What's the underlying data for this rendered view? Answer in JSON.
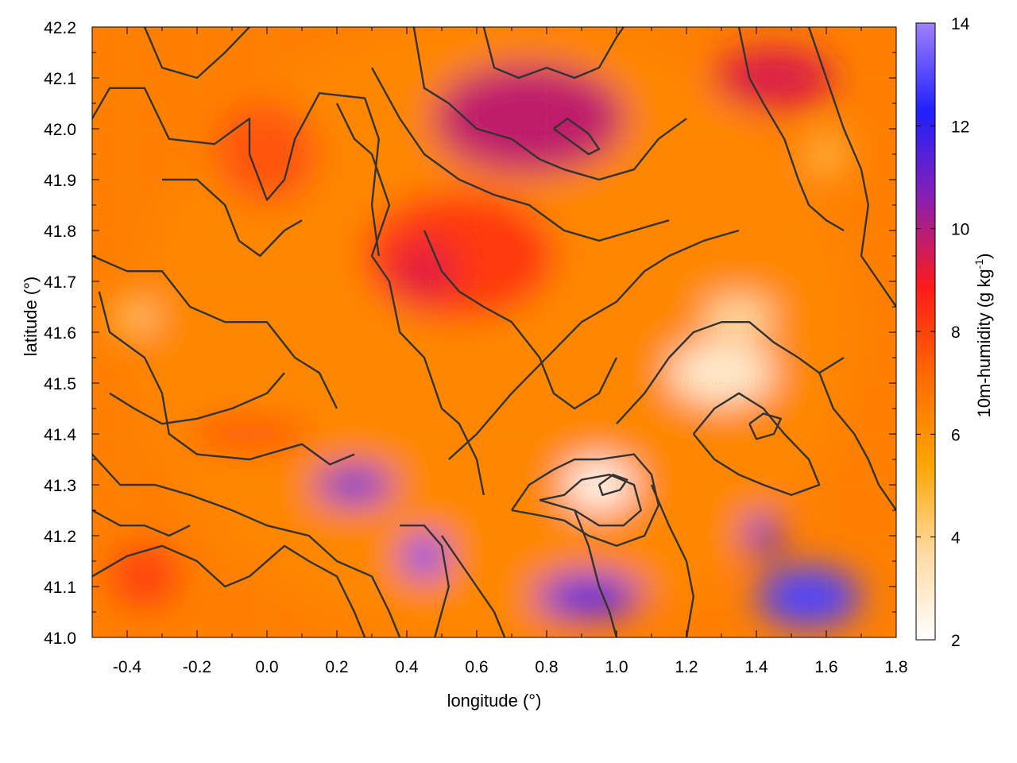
{
  "chart_data": {
    "type": "heatmap",
    "xlabel": "longitude (°)",
    "ylabel": "latitude (°)",
    "colorbar_label": "10m-humidity (g kg",
    "colorbar_label_sup": "-1",
    "colorbar_label_end": ")",
    "xlim": [
      -0.5,
      1.8
    ],
    "ylim": [
      41.0,
      42.2
    ],
    "clim": [
      2,
      14
    ],
    "x_ticks": [
      -0.4,
      -0.2,
      0.0,
      0.2,
      0.4,
      0.6,
      0.8,
      1.0,
      1.2,
      1.4,
      1.6,
      1.8
    ],
    "x_tick_labels": [
      "-0.4",
      "-0.2",
      "0.0",
      "0.2",
      "0.4",
      "0.6",
      "0.8",
      "1.0",
      "1.2",
      "1.4",
      "1.6",
      "1.8"
    ],
    "y_ticks": [
      41.0,
      41.1,
      41.2,
      41.3,
      41.4,
      41.5,
      41.6,
      41.7,
      41.8,
      41.9,
      42.0,
      42.1,
      42.2
    ],
    "y_tick_labels": [
      "41.0",
      "41.1",
      "41.2",
      "41.3",
      "41.4",
      "41.5",
      "41.6",
      "41.7",
      "41.8",
      "41.9",
      "42.0",
      "42.1",
      "42.2"
    ],
    "c_ticks": [
      2,
      4,
      6,
      8,
      10,
      12,
      14
    ],
    "c_tick_labels": [
      "2",
      "4",
      "6",
      "8",
      "10",
      "12",
      "14"
    ],
    "grid": true,
    "colormap": [
      "#ffffff",
      "#ffd9a0",
      "#ffa500",
      "#ff6a00",
      "#ff1a1a",
      "#8a1fb0",
      "#2020ff",
      "#9f80ff"
    ],
    "contour_color": "#333333",
    "humidity_regions": [
      {
        "name": "base-orange",
        "lon": 0.65,
        "lat": 41.6,
        "rlon": 2.0,
        "rlat": 1.2,
        "value": 6.3
      },
      {
        "name": "north-purple",
        "lon": 0.75,
        "lat": 42.02,
        "rlon": 0.55,
        "rlat": 0.22,
        "value": 9.8
      },
      {
        "name": "north-east-purple",
        "lon": 1.45,
        "lat": 42.1,
        "rlon": 0.35,
        "rlat": 0.12,
        "value": 9.4
      },
      {
        "name": "central-red",
        "lon": 0.55,
        "lat": 41.75,
        "rlon": 0.55,
        "rlat": 0.25,
        "value": 8.2
      },
      {
        "name": "central-purple",
        "lon": 0.45,
        "lat": 41.72,
        "rlon": 0.18,
        "rlat": 0.12,
        "value": 9.3
      },
      {
        "name": "north-red",
        "lon": 0.0,
        "lat": 41.95,
        "rlon": 0.3,
        "rlat": 0.2,
        "value": 7.6
      },
      {
        "name": "west-red-band",
        "lon": -0.05,
        "lat": 41.4,
        "rlon": 0.35,
        "rlat": 0.05,
        "value": 8.1
      },
      {
        "name": "south-west-red",
        "lon": -0.35,
        "lat": 41.12,
        "rlon": 0.2,
        "rlat": 0.12,
        "value": 8.0
      },
      {
        "name": "blue-band-west",
        "lon": 0.25,
        "lat": 41.3,
        "rlon": 0.22,
        "rlat": 0.07,
        "value": 11.5
      },
      {
        "name": "blue-spot",
        "lon": 0.45,
        "lat": 41.16,
        "rlon": 0.12,
        "rlat": 0.08,
        "value": 12.8
      },
      {
        "name": "blue-south",
        "lon": 0.92,
        "lat": 41.08,
        "rlon": 0.3,
        "rlat": 0.09,
        "value": 11.5
      },
      {
        "name": "lavender-south-east",
        "lon": 1.55,
        "lat": 41.08,
        "rlon": 0.3,
        "rlat": 0.12,
        "value": 12.9
      },
      {
        "name": "blue-south-east",
        "lon": 1.42,
        "lat": 41.2,
        "rlon": 0.1,
        "rlat": 0.08,
        "value": 11.6
      },
      {
        "name": "dry-core",
        "lon": 0.95,
        "lat": 41.3,
        "rlon": 0.2,
        "rlat": 0.1,
        "value": 2.3
      },
      {
        "name": "dry-east",
        "lon": 1.3,
        "lat": 41.52,
        "rlon": 0.3,
        "rlat": 0.12,
        "value": 2.9
      },
      {
        "name": "dry-north-east",
        "lon": 1.35,
        "lat": 41.63,
        "rlon": 0.2,
        "rlat": 0.08,
        "value": 3.6
      },
      {
        "name": "dry-west",
        "lon": -0.38,
        "lat": 41.63,
        "rlon": 0.12,
        "rlat": 0.06,
        "value": 4.0
      },
      {
        "name": "north-east-dry-strip",
        "lon": 1.6,
        "lat": 41.95,
        "rlon": 0.1,
        "rlat": 0.08,
        "value": 4.5
      }
    ],
    "contours": [
      [
        [
          -0.5,
          42.02
        ],
        [
          -0.45,
          42.08
        ],
        [
          -0.35,
          42.08
        ],
        [
          -0.28,
          41.98
        ],
        [
          -0.15,
          41.97
        ],
        [
          -0.05,
          42.02
        ],
        [
          -0.05,
          41.95
        ],
        [
          0.0,
          41.86
        ],
        [
          0.05,
          41.9
        ],
        [
          0.08,
          41.98
        ],
        [
          0.15,
          42.07
        ],
        [
          0.28,
          42.06
        ],
        [
          0.32,
          41.98
        ],
        [
          0.3,
          41.85
        ],
        [
          0.32,
          41.75
        ]
      ],
      [
        [
          -0.3,
          41.9
        ],
        [
          -0.2,
          41.9
        ],
        [
          -0.12,
          41.85
        ],
        [
          -0.08,
          41.78
        ],
        [
          -0.02,
          41.75
        ],
        [
          0.05,
          41.8
        ],
        [
          0.1,
          41.82
        ]
      ],
      [
        [
          -0.5,
          41.75
        ],
        [
          -0.4,
          41.72
        ],
        [
          -0.3,
          41.72
        ],
        [
          -0.22,
          41.65
        ],
        [
          -0.12,
          41.62
        ],
        [
          0.0,
          41.62
        ],
        [
          0.08,
          41.55
        ],
        [
          0.15,
          41.52
        ],
        [
          0.2,
          41.45
        ]
      ],
      [
        [
          -0.48,
          41.68
        ],
        [
          -0.45,
          41.6
        ],
        [
          -0.35,
          41.55
        ],
        [
          -0.3,
          41.48
        ],
        [
          -0.28,
          41.4
        ],
        [
          -0.2,
          41.36
        ],
        [
          -0.05,
          41.35
        ],
        [
          0.05,
          41.37
        ],
        [
          0.1,
          41.38
        ],
        [
          0.18,
          41.34
        ],
        [
          0.25,
          41.36
        ]
      ],
      [
        [
          -0.5,
          41.36
        ],
        [
          -0.42,
          41.3
        ],
        [
          -0.32,
          41.3
        ],
        [
          -0.22,
          41.28
        ],
        [
          -0.1,
          41.25
        ],
        [
          0.0,
          41.22
        ],
        [
          0.12,
          41.2
        ],
        [
          0.2,
          41.15
        ],
        [
          0.3,
          41.12
        ],
        [
          0.35,
          41.05
        ],
        [
          0.38,
          41.0
        ]
      ],
      [
        [
          -0.5,
          41.12
        ],
        [
          -0.4,
          41.16
        ],
        [
          -0.3,
          41.18
        ],
        [
          -0.2,
          41.15
        ],
        [
          -0.12,
          41.1
        ],
        [
          -0.05,
          41.12
        ],
        [
          0.05,
          41.18
        ],
        [
          0.12,
          41.15
        ],
        [
          0.2,
          41.12
        ],
        [
          0.25,
          41.05
        ],
        [
          0.28,
          41.0
        ]
      ],
      [
        [
          0.2,
          42.05
        ],
        [
          0.25,
          41.98
        ],
        [
          0.3,
          41.95
        ],
        [
          0.35,
          41.85
        ],
        [
          0.3,
          41.75
        ],
        [
          0.35,
          41.7
        ],
        [
          0.38,
          41.6
        ],
        [
          0.45,
          41.55
        ],
        [
          0.5,
          41.45
        ],
        [
          0.55,
          41.42
        ],
        [
          0.6,
          41.35
        ],
        [
          0.62,
          41.28
        ]
      ],
      [
        [
          0.42,
          42.2
        ],
        [
          0.45,
          42.08
        ],
        [
          0.52,
          42.05
        ],
        [
          0.6,
          42.0
        ],
        [
          0.7,
          41.98
        ],
        [
          0.78,
          41.94
        ],
        [
          0.85,
          41.92
        ],
        [
          0.95,
          41.9
        ],
        [
          1.05,
          41.92
        ],
        [
          1.12,
          41.98
        ],
        [
          1.2,
          42.02
        ]
      ],
      [
        [
          0.3,
          42.12
        ],
        [
          0.38,
          42.02
        ],
        [
          0.45,
          41.95
        ],
        [
          0.55,
          41.9
        ],
        [
          0.65,
          41.87
        ],
        [
          0.75,
          41.85
        ],
        [
          0.85,
          41.8
        ],
        [
          0.95,
          41.78
        ],
        [
          1.05,
          41.8
        ],
        [
          1.15,
          41.82
        ]
      ],
      [
        [
          0.45,
          41.8
        ],
        [
          0.5,
          41.72
        ],
        [
          0.55,
          41.68
        ],
        [
          0.62,
          41.65
        ],
        [
          0.7,
          41.62
        ],
        [
          0.78,
          41.55
        ],
        [
          0.82,
          41.48
        ],
        [
          0.88,
          41.45
        ],
        [
          0.95,
          41.48
        ],
        [
          1.0,
          41.55
        ]
      ],
      [
        [
          0.52,
          41.35
        ],
        [
          0.6,
          41.4
        ],
        [
          0.7,
          41.48
        ],
        [
          0.8,
          41.55
        ],
        [
          0.9,
          41.62
        ],
        [
          1.0,
          41.66
        ],
        [
          1.08,
          41.72
        ],
        [
          1.15,
          41.75
        ],
        [
          1.25,
          41.78
        ],
        [
          1.35,
          41.8
        ]
      ],
      [
        [
          1.0,
          41.42
        ],
        [
          1.08,
          41.48
        ],
        [
          1.15,
          41.55
        ],
        [
          1.22,
          41.6
        ],
        [
          1.3,
          41.62
        ],
        [
          1.38,
          41.62
        ],
        [
          1.45,
          41.58
        ],
        [
          1.52,
          41.55
        ],
        [
          1.58,
          41.52
        ],
        [
          1.65,
          41.55
        ]
      ],
      [
        [
          0.7,
          41.25
        ],
        [
          0.75,
          41.3
        ],
        [
          0.82,
          41.33
        ],
        [
          0.88,
          41.35
        ],
        [
          0.95,
          41.35
        ],
        [
          1.05,
          41.36
        ],
        [
          1.1,
          41.32
        ],
        [
          1.12,
          41.26
        ],
        [
          1.08,
          41.2
        ],
        [
          1.0,
          41.18
        ],
        [
          0.92,
          41.2
        ],
        [
          0.85,
          41.23
        ],
        [
          0.78,
          41.24
        ],
        [
          0.7,
          41.25
        ]
      ],
      [
        [
          0.78,
          41.27
        ],
        [
          0.85,
          41.28
        ],
        [
          0.9,
          41.31
        ],
        [
          0.98,
          41.32
        ],
        [
          1.05,
          41.3
        ],
        [
          1.07,
          41.25
        ],
        [
          1.02,
          41.22
        ],
        [
          0.95,
          41.22
        ],
        [
          0.88,
          41.25
        ],
        [
          0.78,
          41.27
        ]
      ],
      [
        [
          0.95,
          41.3
        ],
        [
          0.99,
          41.32
        ],
        [
          1.03,
          41.31
        ],
        [
          1.01,
          41.29
        ],
        [
          0.96,
          41.28
        ],
        [
          0.95,
          41.3
        ]
      ],
      [
        [
          1.22,
          41.4
        ],
        [
          1.28,
          41.45
        ],
        [
          1.35,
          41.48
        ],
        [
          1.42,
          41.45
        ],
        [
          1.48,
          41.4
        ],
        [
          1.55,
          41.35
        ],
        [
          1.58,
          41.3
        ],
        [
          1.5,
          41.28
        ],
        [
          1.42,
          41.3
        ],
        [
          1.35,
          41.32
        ],
        [
          1.28,
          41.35
        ],
        [
          1.22,
          41.4
        ]
      ],
      [
        [
          1.38,
          41.42
        ],
        [
          1.42,
          41.44
        ],
        [
          1.47,
          41.43
        ],
        [
          1.45,
          41.4
        ],
        [
          1.4,
          41.39
        ],
        [
          1.38,
          41.42
        ]
      ],
      [
        [
          0.5,
          41.2
        ],
        [
          0.55,
          41.15
        ],
        [
          0.6,
          41.1
        ],
        [
          0.65,
          41.05
        ],
        [
          0.68,
          41.0
        ]
      ],
      [
        [
          0.38,
          41.22
        ],
        [
          0.45,
          41.22
        ],
        [
          0.5,
          41.18
        ],
        [
          0.52,
          41.1
        ],
        [
          0.5,
          41.05
        ],
        [
          0.48,
          41.0
        ]
      ],
      [
        [
          0.88,
          41.25
        ],
        [
          0.92,
          41.18
        ],
        [
          0.95,
          41.1
        ],
        [
          0.98,
          41.05
        ],
        [
          1.0,
          41.0
        ]
      ],
      [
        [
          1.1,
          41.3
        ],
        [
          1.15,
          41.22
        ],
        [
          1.2,
          41.15
        ],
        [
          1.22,
          41.08
        ],
        [
          1.2,
          41.0
        ]
      ],
      [
        [
          1.55,
          42.2
        ],
        [
          1.6,
          42.1
        ],
        [
          1.65,
          42.0
        ],
        [
          1.7,
          41.92
        ],
        [
          1.72,
          41.85
        ],
        [
          1.7,
          41.75
        ],
        [
          1.75,
          41.7
        ],
        [
          1.8,
          41.65
        ]
      ],
      [
        [
          1.35,
          42.2
        ],
        [
          1.38,
          42.1
        ],
        [
          1.42,
          42.05
        ],
        [
          1.48,
          41.98
        ],
        [
          1.52,
          41.9
        ],
        [
          1.55,
          41.85
        ],
        [
          1.6,
          41.82
        ],
        [
          1.65,
          41.8
        ]
      ],
      [
        [
          1.58,
          41.52
        ],
        [
          1.62,
          41.45
        ],
        [
          1.68,
          41.4
        ],
        [
          1.72,
          41.35
        ],
        [
          1.75,
          41.3
        ],
        [
          1.8,
          41.25
        ]
      ],
      [
        [
          -0.35,
          42.2
        ],
        [
          -0.3,
          42.12
        ],
        [
          -0.2,
          42.1
        ],
        [
          -0.12,
          42.15
        ],
        [
          -0.05,
          42.2
        ]
      ],
      [
        [
          0.62,
          42.2
        ],
        [
          0.65,
          42.12
        ],
        [
          0.72,
          42.1
        ],
        [
          0.8,
          42.12
        ],
        [
          0.88,
          42.1
        ],
        [
          0.95,
          42.12
        ],
        [
          1.0,
          42.18
        ],
        [
          1.02,
          42.2
        ]
      ],
      [
        [
          0.82,
          42.0
        ],
        [
          0.88,
          41.97
        ],
        [
          0.92,
          41.95
        ],
        [
          0.95,
          41.96
        ],
        [
          0.92,
          41.99
        ],
        [
          0.86,
          42.02
        ],
        [
          0.82,
          42.0
        ]
      ],
      [
        [
          -0.45,
          41.48
        ],
        [
          -0.38,
          41.45
        ],
        [
          -0.3,
          41.42
        ],
        [
          -0.2,
          41.43
        ],
        [
          -0.1,
          41.45
        ],
        [
          0.0,
          41.48
        ],
        [
          0.05,
          41.52
        ]
      ],
      [
        [
          -0.5,
          41.25
        ],
        [
          -0.42,
          41.22
        ],
        [
          -0.35,
          41.22
        ],
        [
          -0.28,
          41.2
        ],
        [
          -0.22,
          41.22
        ]
      ]
    ]
  }
}
